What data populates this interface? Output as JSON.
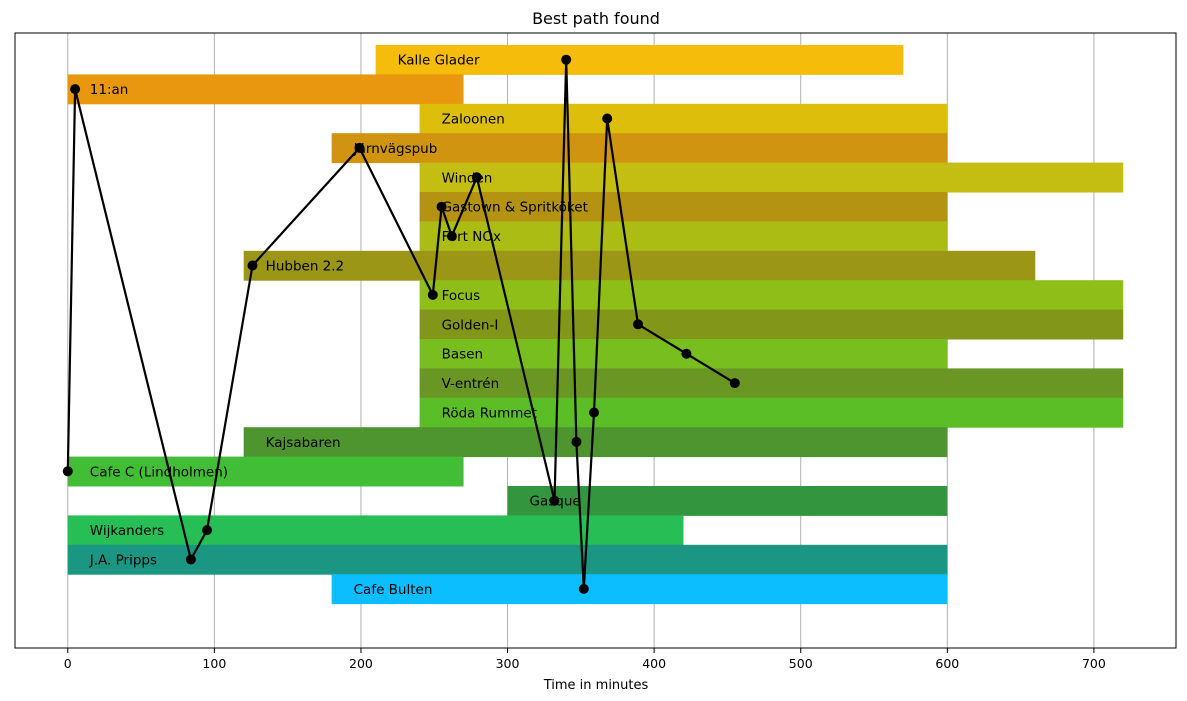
{
  "chart_data": {
    "type": "bar",
    "orientation": "horizontal",
    "title": "Best path found",
    "xlabel": "Time in minutes",
    "ylabel": "",
    "xlim": [
      -36,
      756
    ],
    "xticks": [
      0,
      100,
      200,
      300,
      400,
      500,
      600,
      700
    ],
    "grid": "x",
    "categories": [
      "Kalle Glader",
      "11:an",
      "Zaloonen",
      "Järnvägspub",
      "Winden",
      "Gastown & Spritköket",
      "Fort NOx",
      "Hubben 2.2",
      "Focus",
      "Golden-I",
      "Basen",
      "V-entrén",
      "Röda Rummet",
      "Kajsabaren",
      "Cafe C (Lindholmen)",
      "Gasque",
      "Wijkanders",
      "J.A. Pripps",
      "Cafe Bulten"
    ],
    "bars": [
      {
        "label": "Kalle Glader",
        "start": 210,
        "end": 570,
        "color": "#f5bc0b"
      },
      {
        "label": "11:an",
        "start": 0,
        "end": 270,
        "color": "#e9970e"
      },
      {
        "label": "Zaloonen",
        "start": 240,
        "end": 600,
        "color": "#dcbe0b"
      },
      {
        "label": "Järnvägspub",
        "start": 180,
        "end": 600,
        "color": "#d09410"
      },
      {
        "label": "Winden",
        "start": 240,
        "end": 720,
        "color": "#c5be12"
      },
      {
        "label": "Gastown & Spritköket",
        "start": 240,
        "end": 600,
        "color": "#b49212"
      },
      {
        "label": "Fort NOx",
        "start": 240,
        "end": 600,
        "color": "#abbc14"
      },
      {
        "label": "Hubben 2.2",
        "start": 120,
        "end": 660,
        "color": "#9b9615"
      },
      {
        "label": "Focus",
        "start": 240,
        "end": 720,
        "color": "#8fbe18"
      },
      {
        "label": "Golden-I",
        "start": 240,
        "end": 720,
        "color": "#82961a"
      },
      {
        "label": "Basen",
        "start": 240,
        "end": 600,
        "color": "#77be1e"
      },
      {
        "label": "V-entrén",
        "start": 240,
        "end": 720,
        "color": "#6a9624"
      },
      {
        "label": "Röda Rummet",
        "start": 240,
        "end": 720,
        "color": "#5cbe26"
      },
      {
        "label": "Kajsabaren",
        "start": 120,
        "end": 600,
        "color": "#4e942f"
      },
      {
        "label": "Cafe C (Lindholmen)",
        "start": 0,
        "end": 270,
        "color": "#41be35"
      },
      {
        "label": "Gasque",
        "start": 300,
        "end": 600,
        "color": "#34953f"
      },
      {
        "label": "Wijkanders",
        "start": 0,
        "end": 420,
        "color": "#26be55"
      },
      {
        "label": "J.A. Pripps",
        "start": 0,
        "end": 600,
        "color": "#1b9682"
      },
      {
        "label": "Cafe Bulten",
        "start": 180,
        "end": 600,
        "color": "#0cbefe"
      }
    ],
    "path": {
      "color": "#000000",
      "points": [
        {
          "x": 0,
          "y": "Cafe C (Lindholmen)"
        },
        {
          "x": 5,
          "y": "11:an"
        },
        {
          "x": 84,
          "y": "J.A. Pripps"
        },
        {
          "x": 95,
          "y": "Wijkanders"
        },
        {
          "x": 126,
          "y": "Hubben 2.2"
        },
        {
          "x": 199,
          "y": "Järnvägspub"
        },
        {
          "x": 249,
          "y": "Focus"
        },
        {
          "x": 255,
          "y": "Gastown & Spritköket"
        },
        {
          "x": 262,
          "y": "Fort NOx"
        },
        {
          "x": 279,
          "y": "Winden"
        },
        {
          "x": 332,
          "y": "Gasque"
        },
        {
          "x": 340,
          "y": "Kalle Glader"
        },
        {
          "x": 347,
          "y": "Kajsabaren"
        },
        {
          "x": 352,
          "y": "Cafe Bulten"
        },
        {
          "x": 359,
          "y": "Röda Rummet"
        },
        {
          "x": 368,
          "y": "Zaloonen"
        },
        {
          "x": 389,
          "y": "Golden-I"
        },
        {
          "x": 422,
          "y": "Basen"
        },
        {
          "x": 455,
          "y": "V-entrén"
        }
      ]
    }
  }
}
